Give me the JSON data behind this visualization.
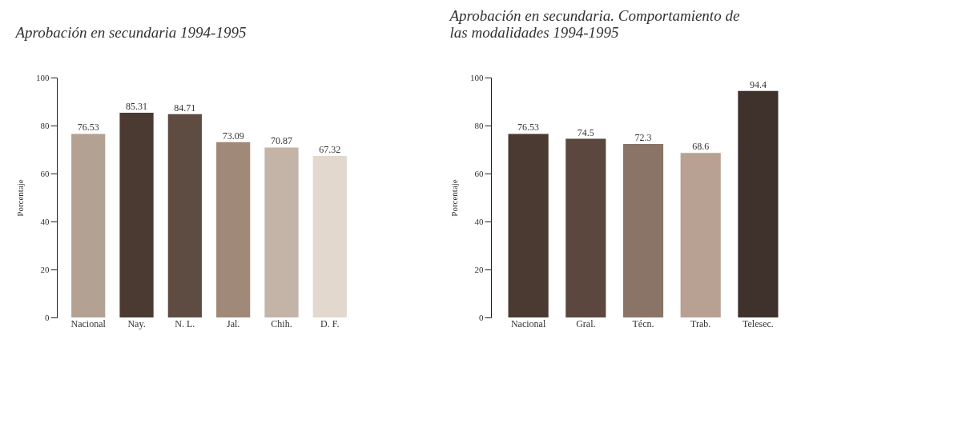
{
  "chart_data": [
    {
      "type": "bar",
      "title": "Aprobación en secundaria 1994-1995",
      "ylabel": "Porcentaje",
      "categories": [
        "Nacional",
        "Nay.",
        "N. L.",
        "Jal.",
        "Chih.",
        "D. F."
      ],
      "values": [
        76.53,
        85.31,
        84.71,
        73.09,
        70.87,
        67.32
      ],
      "colors": [
        "#b3a293",
        "#4a3a32",
        "#5e4b41",
        "#a08979",
        "#c4b4a7",
        "#e2d8ce"
      ],
      "ylim": [
        0,
        100
      ],
      "yticks": [
        0,
        20,
        40,
        60,
        80,
        100
      ],
      "data_labels": true,
      "grid": false
    },
    {
      "type": "bar",
      "title": "Aprobación en secundaria. Comportamiento de las modalidades 1994-1995",
      "ylabel": "Porcentaje",
      "categories": [
        "Nacional",
        "Gral.",
        "Técn.",
        "Trab.",
        "Telesec."
      ],
      "values": [
        76.53,
        74.5,
        72.3,
        68.6,
        94.4
      ],
      "colors": [
        "#4a3a32",
        "#5b473d",
        "#8a7467",
        "#b8a192",
        "#3f312b"
      ],
      "ylim": [
        0,
        100
      ],
      "yticks": [
        0,
        20,
        40,
        60,
        80,
        100
      ],
      "data_labels": true,
      "grid": false
    }
  ]
}
